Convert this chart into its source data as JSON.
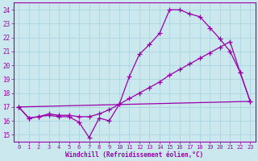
{
  "bg_color": "#cce8ef",
  "grid_color": "#b0d8e0",
  "line_color": "#9900aa",
  "marker": "+",
  "xlabel": "Windchill (Refroidissement éolien,°C)",
  "xlabel_color": "#9900aa",
  "ylim": [
    14.5,
    24.5
  ],
  "xlim": [
    -0.5,
    23.5
  ],
  "yticks": [
    15,
    16,
    17,
    18,
    19,
    20,
    21,
    22,
    23,
    24
  ],
  "xticks": [
    0,
    1,
    2,
    3,
    4,
    5,
    6,
    7,
    8,
    9,
    10,
    11,
    12,
    13,
    14,
    15,
    16,
    17,
    18,
    19,
    20,
    21,
    22,
    23
  ],
  "line1_x": [
    0,
    1,
    2,
    3,
    4,
    5,
    6,
    7,
    8,
    9,
    10,
    11,
    12,
    13,
    14,
    15,
    16,
    17,
    18,
    19,
    20,
    21,
    22,
    23
  ],
  "line1_y": [
    17.0,
    16.2,
    16.3,
    16.4,
    16.3,
    16.3,
    15.9,
    14.8,
    16.2,
    16.0,
    17.2,
    19.2,
    20.8,
    21.5,
    22.3,
    24.0,
    24.0,
    23.7,
    23.5,
    22.7,
    21.9,
    21.0,
    19.5,
    17.4
  ],
  "line2_x": [
    0,
    1,
    2,
    3,
    4,
    5,
    6,
    7,
    8,
    9,
    10,
    11,
    12,
    13,
    14,
    15,
    16,
    17,
    18,
    19,
    20,
    21,
    22,
    23
  ],
  "line2_y": [
    17.0,
    16.2,
    16.3,
    16.5,
    16.4,
    16.4,
    16.3,
    16.3,
    16.5,
    16.8,
    17.2,
    17.6,
    18.0,
    18.4,
    18.8,
    19.3,
    19.7,
    20.1,
    20.5,
    20.9,
    21.3,
    21.7,
    19.5,
    17.4
  ],
  "line3_x": [
    0,
    23
  ],
  "line3_y": [
    17.0,
    17.4
  ]
}
